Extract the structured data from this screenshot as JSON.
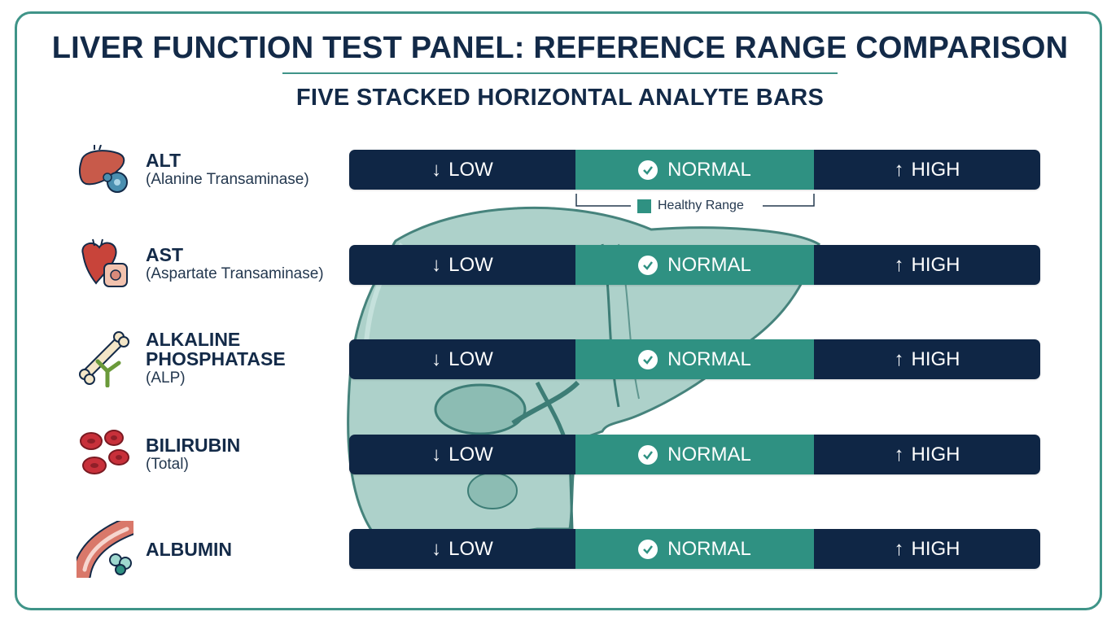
{
  "header": {
    "title": "LIVER FUNCTION TEST PANEL: REFERENCE RANGE COMPARISON",
    "subtitle": "FIVE STACKED HORIZONTAL ANALYTE BARS"
  },
  "bar_labels": {
    "low": "LOW",
    "normal": "NORMAL",
    "high": "HIGH"
  },
  "legend": {
    "healthy_range": "Healthy Range"
  },
  "analytes": [
    {
      "name": "ALT",
      "subname": "(Alanine Transaminase)",
      "icon": "liver-cell-icon"
    },
    {
      "name": "AST",
      "subname": "(Aspartate Transaminase)",
      "icon": "heart-muscle-icon"
    },
    {
      "name_line1": "ALKALINE",
      "name_line2": "PHOSPHATASE",
      "subname": "(ALP)",
      "icon": "bone-icon"
    },
    {
      "name": "BILIRUBIN",
      "subname": "(Total)",
      "icon": "red-blood-cells-icon"
    },
    {
      "name": "ALBUMIN",
      "icon": "blood-vessel-protein-icon"
    }
  ],
  "colors": {
    "navy": "#0f2645",
    "teal": "#2f9182",
    "liver_fill": "#a9cfc8",
    "border": "#3f9488"
  }
}
